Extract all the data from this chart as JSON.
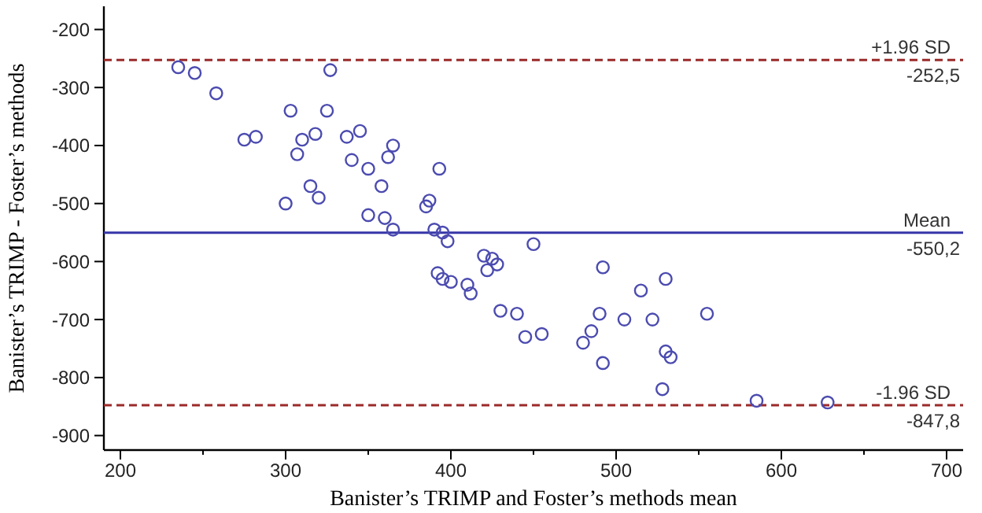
{
  "chart_data": {
    "type": "scatter",
    "xlabel": "Banister’s TRIMP and Foster’s methods mean",
    "ylabel": "Banister’s TRIMP - Foster’s methods",
    "xlim": [
      190,
      710
    ],
    "ylim": [
      -925,
      -160
    ],
    "xticks": [
      200,
      {
        "value": 250,
        "label": null
      },
      300,
      {
        "value": 350,
        "label": null
      },
      400,
      {
        "value": 450,
        "label": null
      },
      500,
      {
        "value": 550,
        "label": null
      },
      600,
      {
        "value": 650,
        "label": null
      },
      700
    ],
    "yticks": [
      -200,
      -300,
      -400,
      -500,
      -600,
      -700,
      -800,
      -900
    ],
    "grid": false,
    "marker": "circle",
    "series": [
      {
        "color": "#4b4bb0",
        "x": [
          235,
          245,
          258,
          275,
          282,
          300,
          303,
          307,
          310,
          315,
          318,
          320,
          325,
          327,
          337,
          340,
          345,
          350,
          350,
          358,
          360,
          362,
          365,
          365,
          385,
          387,
          390,
          393,
          395,
          398,
          392,
          395,
          400,
          410,
          412,
          420,
          422,
          425,
          428,
          430,
          440,
          445,
          450,
          455,
          480,
          485,
          490,
          492,
          492,
          505,
          515,
          522,
          528,
          530,
          530,
          533,
          555,
          585,
          628
        ],
        "values": [
          -265,
          -275,
          -310,
          -390,
          -385,
          -500,
          -340,
          -415,
          -390,
          -470,
          -380,
          -490,
          -340,
          -270,
          -385,
          -425,
          -375,
          -520,
          -440,
          -470,
          -525,
          -420,
          -400,
          -545,
          -505,
          -495,
          -545,
          -440,
          -550,
          -565,
          -620,
          -630,
          -635,
          -640,
          -655,
          -590,
          -615,
          -595,
          -605,
          -685,
          -690,
          -730,
          -570,
          -725,
          -740,
          -720,
          -690,
          -610,
          -775,
          -700,
          -650,
          -700,
          -820,
          -630,
          -755,
          -765,
          -690,
          -840,
          -843
        ]
      }
    ],
    "ref_lines": [
      {
        "axis": "y",
        "value": -252.5,
        "label": "+1.96 SD",
        "color": "#9b2a2a",
        "line_style": "dashed"
      },
      {
        "axis": "y",
        "value": -550.2,
        "label": "Mean",
        "color": "#3636a8",
        "line_style": "solid"
      },
      {
        "axis": "y",
        "value": -847.8,
        "label": "-1.96 SD",
        "color": "#9b2a2a",
        "line_style": "dashed"
      }
    ],
    "annotations": [
      {
        "text": "-252,5",
        "y": -252.5
      },
      {
        "text": "-550,2",
        "y": -550.2
      },
      {
        "text": "-847,8",
        "y": -847.8
      }
    ]
  }
}
